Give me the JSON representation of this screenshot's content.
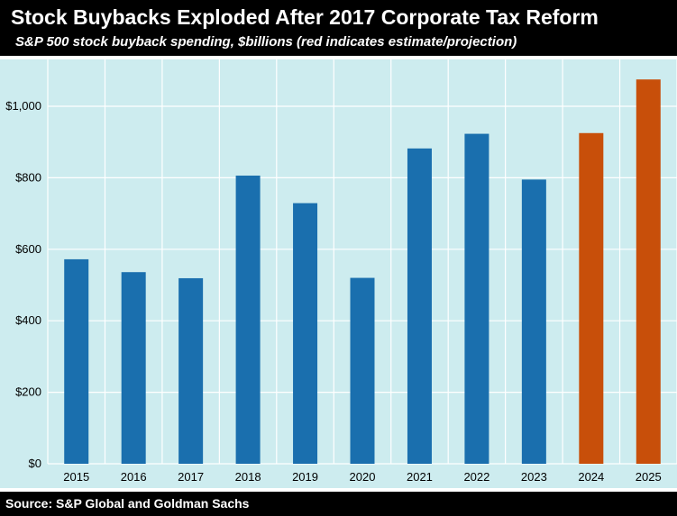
{
  "header": {
    "title": "Stock Buybacks Exploded After 2017 Corporate Tax Reform",
    "subtitle": "S&P 500 stock buyback spending, $billions (red indicates estimate/projection)"
  },
  "footer": {
    "source": "Source: S&P Global and Goldman Sachs"
  },
  "colors": {
    "actual": "#1a6fae",
    "estimate": "#c84f0a",
    "plot_background": "#cdecef",
    "gridline": "#ffffff"
  },
  "chart_data": {
    "type": "bar",
    "title": "Stock Buybacks Exploded After 2017 Corporate Tax Reform",
    "subtitle": "S&P 500 stock buyback spending, $billions (red indicates estimate/projection)",
    "xlabel": "",
    "ylabel": "",
    "categories": [
      "2015",
      "2016",
      "2017",
      "2018",
      "2019",
      "2020",
      "2021",
      "2022",
      "2023",
      "2024",
      "2025"
    ],
    "values": [
      572,
      536,
      519,
      806,
      729,
      520,
      882,
      923,
      795,
      925,
      1075
    ],
    "estimate_flags": [
      false,
      false,
      false,
      false,
      false,
      false,
      false,
      false,
      false,
      true,
      true
    ],
    "ylim": [
      0,
      1100
    ],
    "yticks": [
      0,
      200,
      400,
      600,
      800,
      1000
    ],
    "ytick_labels": [
      "$0",
      "$200",
      "$400",
      "$600",
      "$800",
      "$1,000"
    ],
    "grid": true,
    "legend": "none"
  }
}
